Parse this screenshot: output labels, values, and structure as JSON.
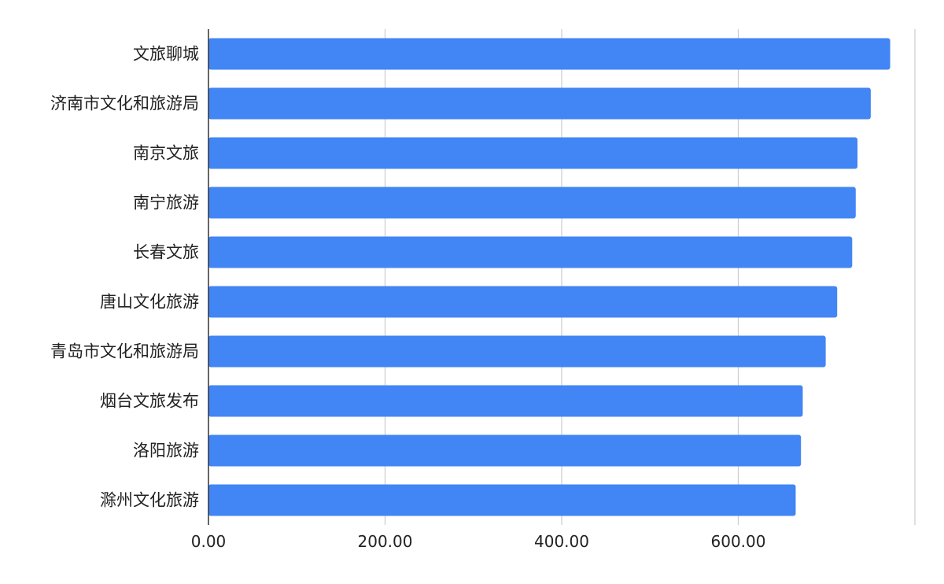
{
  "chart_data": {
    "type": "bar",
    "orientation": "horizontal",
    "categories": [
      "文旅聊城",
      "济南市文化和旅游局",
      "南京文旅",
      "南宁旅游",
      "长春文旅",
      "唐山文化旅游",
      "青岛市文化和旅游局",
      "烟台文旅发布",
      "洛阳旅游",
      "滁州文化旅游"
    ],
    "values": [
      772,
      750,
      735,
      733,
      729,
      712,
      699,
      673,
      671,
      665
    ],
    "xlim": [
      0,
      800
    ],
    "x_ticks": [
      0,
      200,
      400,
      600
    ],
    "x_tick_labels": [
      "0.00",
      "200.00",
      "400.00",
      "600.00"
    ],
    "title": "",
    "xlabel": "",
    "ylabel": "",
    "grid": true,
    "legend": "none",
    "bar_color": "#4285F4",
    "grid_color": "#cccccc",
    "axis_color": "#333333"
  }
}
